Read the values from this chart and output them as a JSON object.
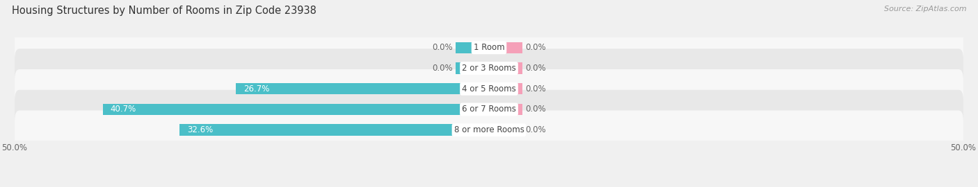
{
  "title": "Housing Structures by Number of Rooms in Zip Code 23938",
  "source": "Source: ZipAtlas.com",
  "categories": [
    "1 Room",
    "2 or 3 Rooms",
    "4 or 5 Rooms",
    "6 or 7 Rooms",
    "8 or more Rooms"
  ],
  "owner_values": [
    0.0,
    0.0,
    26.7,
    40.7,
    32.6
  ],
  "renter_values": [
    0.0,
    0.0,
    0.0,
    0.0,
    0.0
  ],
  "owner_color": "#4bbfc8",
  "renter_color": "#f5a0b8",
  "axis_max": 50.0,
  "axis_min": -50.0,
  "bg_color": "#f0f0f0",
  "row_bg_light": "#f7f7f7",
  "row_bg_dark": "#e8e8e8",
  "title_fontsize": 10.5,
  "source_fontsize": 8,
  "label_fontsize": 8.5,
  "cat_fontsize": 8.5,
  "default_stub": 3.5
}
